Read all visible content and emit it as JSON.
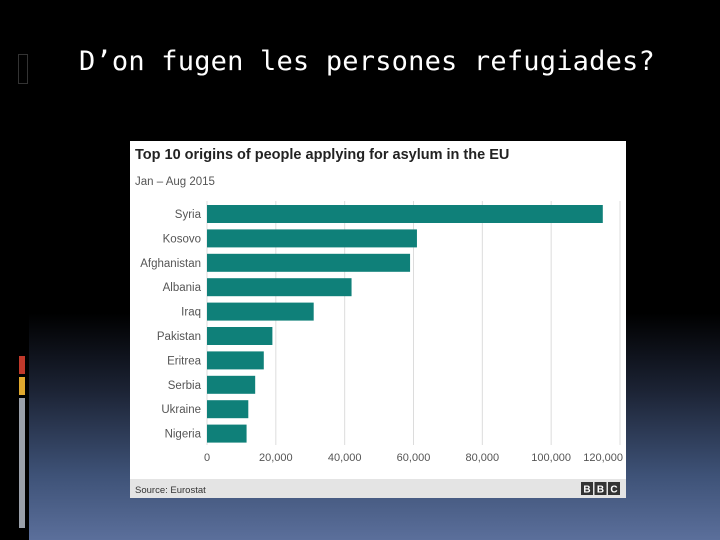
{
  "slide": {
    "title": "D’on fugen les persones refugiades?"
  },
  "colors": {
    "bar": "#0f8079",
    "grid": "#dcdcdc",
    "text": "#555555",
    "title": "#222222"
  },
  "chart_data": {
    "type": "bar",
    "orientation": "horizontal",
    "title": "Top 10 origins of people applying for asylum in the EU",
    "subtitle": "Jan – Aug 2015",
    "categories": [
      "Syria",
      "Kosovo",
      "Afghanistan",
      "Albania",
      "Iraq",
      "Pakistan",
      "Eritrea",
      "Serbia",
      "Ukraine",
      "Nigeria"
    ],
    "values": [
      115000,
      61000,
      59000,
      42000,
      31000,
      19000,
      16500,
      14000,
      12000,
      11500
    ],
    "xticks": [
      "0",
      "20,000",
      "40,000",
      "60,000",
      "80,000",
      "100,000",
      "120,000"
    ],
    "xlim": [
      0,
      120000
    ],
    "grid": true,
    "source": "Source: Eurostat",
    "logo": [
      "B",
      "B",
      "C"
    ]
  }
}
